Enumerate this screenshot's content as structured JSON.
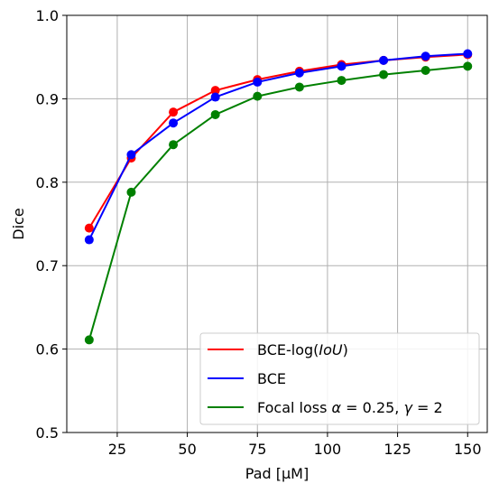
{
  "chart_data": {
    "type": "line",
    "xlabel": "Pad [μM]",
    "ylabel": "Dice",
    "xlim": [
      7,
      157
    ],
    "ylim": [
      0.5,
      1.0
    ],
    "xticks": [
      25,
      50,
      75,
      100,
      125,
      150
    ],
    "xtick_labels": [
      "25",
      "50",
      "75",
      "100",
      "125",
      "150"
    ],
    "yticks": [
      0.5,
      0.6,
      0.7,
      0.8,
      0.9,
      1.0
    ],
    "ytick_labels": [
      "0.5",
      "0.6",
      "0.7",
      "0.8",
      "0.9",
      "1.0"
    ],
    "grid": true,
    "legend_position": "lower-right",
    "x": [
      15,
      30,
      45,
      60,
      75,
      90,
      105,
      120,
      135,
      150
    ],
    "series": [
      {
        "name": "BCE-log(IoU)",
        "color": "#ff0000",
        "values": [
          0.745,
          0.829,
          0.884,
          0.91,
          0.923,
          0.933,
          0.941,
          0.946,
          0.95,
          0.953
        ]
      },
      {
        "name": "BCE",
        "color": "#0000ff",
        "values": [
          0.731,
          0.833,
          0.871,
          0.902,
          0.92,
          0.931,
          0.939,
          0.946,
          0.951,
          0.954
        ]
      },
      {
        "name": "Focal loss α = 0.25, γ = 2",
        "color": "#008000",
        "values": [
          0.611,
          0.788,
          0.845,
          0.881,
          0.903,
          0.914,
          0.922,
          0.929,
          0.934,
          0.939
        ]
      }
    ]
  },
  "legend": {
    "entries": [
      {
        "prefix": "BCE-log(",
        "italic": "IoU",
        "suffix": ")"
      },
      {
        "prefix": "BCE",
        "italic": "",
        "suffix": ""
      },
      {
        "prefix": "Focal loss ",
        "alpha": "α",
        "eq1": " = 0.25, ",
        "gamma": "γ",
        "eq2": " = 2"
      }
    ]
  }
}
